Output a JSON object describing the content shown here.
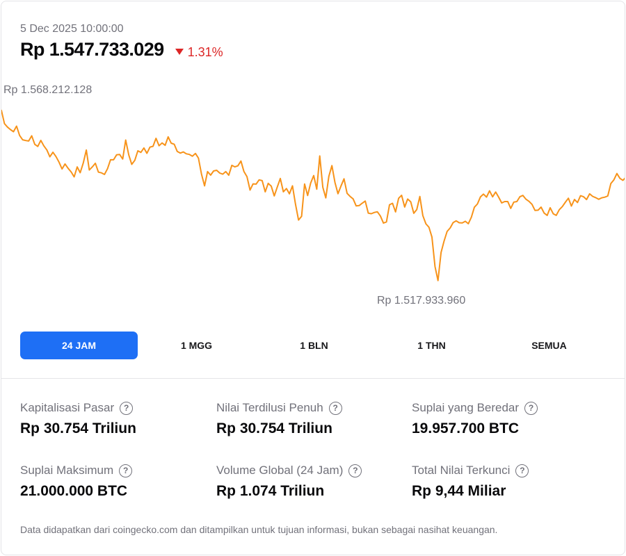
{
  "header": {
    "timestamp": "5 Dec 2025 10:00:00",
    "price": "Rp 1.547.733.029",
    "change_text": "1.31%",
    "change_direction": "down"
  },
  "chart_data": {
    "type": "line",
    "high_label": "Rp 1.568.212.128",
    "low_label": "Rp 1.517.933.960",
    "series": [
      {
        "color": "#f7931a",
        "values": [
          1565.98,
          1562.34,
          1561.41,
          1560.71,
          1560.15,
          1561.67,
          1559.12,
          1557.95,
          1557.73,
          1557.61,
          1559.03,
          1556.69,
          1556.12,
          1557.77,
          1556.29,
          1555.15,
          1553.29,
          1554.53,
          1553.36,
          1551.86,
          1549.98,
          1551.34,
          1550.15,
          1549.17,
          1547.81,
          1550.52,
          1548.95,
          1551.58,
          1555.13,
          1549.7,
          1550.55,
          1551.53,
          1549.1,
          1548.92,
          1548.48,
          1550.05,
          1552.49,
          1552.48,
          1553.85,
          1553.95,
          1552.69,
          1557.87,
          1553.82,
          1551.22,
          1552.32,
          1554.92,
          1554.49,
          1555.71,
          1554.24,
          1555.93,
          1556.17,
          1558.35,
          1556.31,
          1557.08,
          1556.43,
          1558.75,
          1557.02,
          1556.71,
          1554.75,
          1554.31,
          1554.63,
          1554.12,
          1553.95,
          1553.46,
          1554.2,
          1552.93,
          1548.56,
          1545.36,
          1549.25,
          1548.29,
          1549.42,
          1549.62,
          1548.85,
          1548.55,
          1549.26,
          1548.26,
          1550.97,
          1550.54,
          1550.83,
          1552.13,
          1549.28,
          1547.85,
          1544.21,
          1545.89,
          1545.84,
          1546.99,
          1546.78,
          1543.73,
          1546.05,
          1545.27,
          1542.62,
          1545.09,
          1547.38,
          1543.74,
          1544.63,
          1543.18,
          1545.37,
          1540.39,
          1536.04,
          1537.06,
          1545.87,
          1542.72,
          1546.11,
          1548.17,
          1544.45,
          1553.53,
          1544.98,
          1542.08,
          1547.97,
          1550.89,
          1546.35,
          1543.23,
          1545.31,
          1547.29,
          1543.31,
          1542.49,
          1541.79,
          1539.9,
          1539.98,
          1540.62,
          1541.21,
          1537.91,
          1537.75,
          1538.09,
          1538.29,
          1537.13,
          1535.19,
          1535.51,
          1540.2,
          1540.6,
          1538.25,
          1541.97,
          1542.78,
          1539.57,
          1541.76,
          1541.01,
          1537.87,
          1538.9,
          1542.46,
          1537.24,
          1535.01,
          1534.06,
          1531.39,
          1523.36,
          1519.5,
          1527.16,
          1530.26,
          1532.92,
          1533.87,
          1535.32,
          1535.8,
          1535.29,
          1535.25,
          1535.69,
          1535.02,
          1536.81,
          1539.53,
          1540.42,
          1542.37,
          1543.11,
          1542.3,
          1544.0,
          1542.36,
          1543.68,
          1542.3,
          1540.7,
          1541.07,
          1541.07,
          1539.21,
          1540.92,
          1541.07,
          1542.39,
          1542.74,
          1541.73,
          1541.14,
          1540.3,
          1538.64,
          1538.73,
          1539.56,
          1537.93,
          1537.31,
          1539.38,
          1537.74,
          1537.3,
          1538.86,
          1539.71,
          1540.88,
          1541.99,
          1539.85,
          1541.65,
          1540.82,
          1542.67,
          1542.39,
          1541.63,
          1543.19,
          1542.5,
          1542.14,
          1541.71,
          1542.11,
          1542.27,
          1542.59,
          1546.0,
          1547.02,
          1548.72,
          1547.39,
          1546.86,
          1547.77
        ]
      }
    ]
  },
  "tabs": [
    {
      "label": "24 JAM",
      "active": true
    },
    {
      "label": "1 MGG",
      "active": false
    },
    {
      "label": "1 BLN",
      "active": false
    },
    {
      "label": "1 THN",
      "active": false
    },
    {
      "label": "SEMUA",
      "active": false
    }
  ],
  "stats": [
    {
      "label": "Kapitalisasi Pasar",
      "value": "Rp 30.754 Triliun"
    },
    {
      "label": "Nilai Terdilusi Penuh",
      "value": "Rp 30.754 Triliun"
    },
    {
      "label": "Suplai yang Beredar",
      "value": "19.957.700 BTC"
    },
    {
      "label": "Suplai Maksimum",
      "value": "21.000.000 BTC"
    },
    {
      "label": "Volume Global (24 Jam)",
      "value": "Rp 1.074 Triliun"
    },
    {
      "label": "Total Nilai Terkunci",
      "value": "Rp 9,44 Miliar"
    }
  ],
  "help_glyph": "?",
  "change_color": "#dc2626",
  "accent_color": "#1e6ff5",
  "disclaimer": "Data didapatkan dari coingecko.com dan ditampilkan untuk tujuan informasi, bukan sebagai nasihat keuangan."
}
